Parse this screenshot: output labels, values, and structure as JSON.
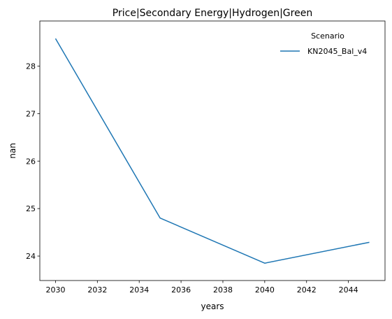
{
  "chart_data": {
    "type": "line",
    "title": "Price|Secondary Energy|Hydrogen|Green",
    "xlabel": "years",
    "ylabel": "nan",
    "x": [
      2030,
      2035,
      2040,
      2045
    ],
    "series": [
      {
        "name": "KN2045_Bal_v4",
        "values": [
          28.58,
          24.8,
          23.85,
          24.29
        ],
        "color": "#1f77b4"
      }
    ],
    "xlim": [
      2029.25,
      2045.75
    ],
    "ylim": [
      23.485,
      28.95
    ],
    "xticks": [
      2030,
      2032,
      2034,
      2036,
      2038,
      2040,
      2042,
      2044
    ],
    "yticks": [
      24,
      25,
      26,
      27,
      28
    ],
    "grid": false,
    "legend": {
      "title": "Scenario",
      "placement": "top-right"
    }
  }
}
